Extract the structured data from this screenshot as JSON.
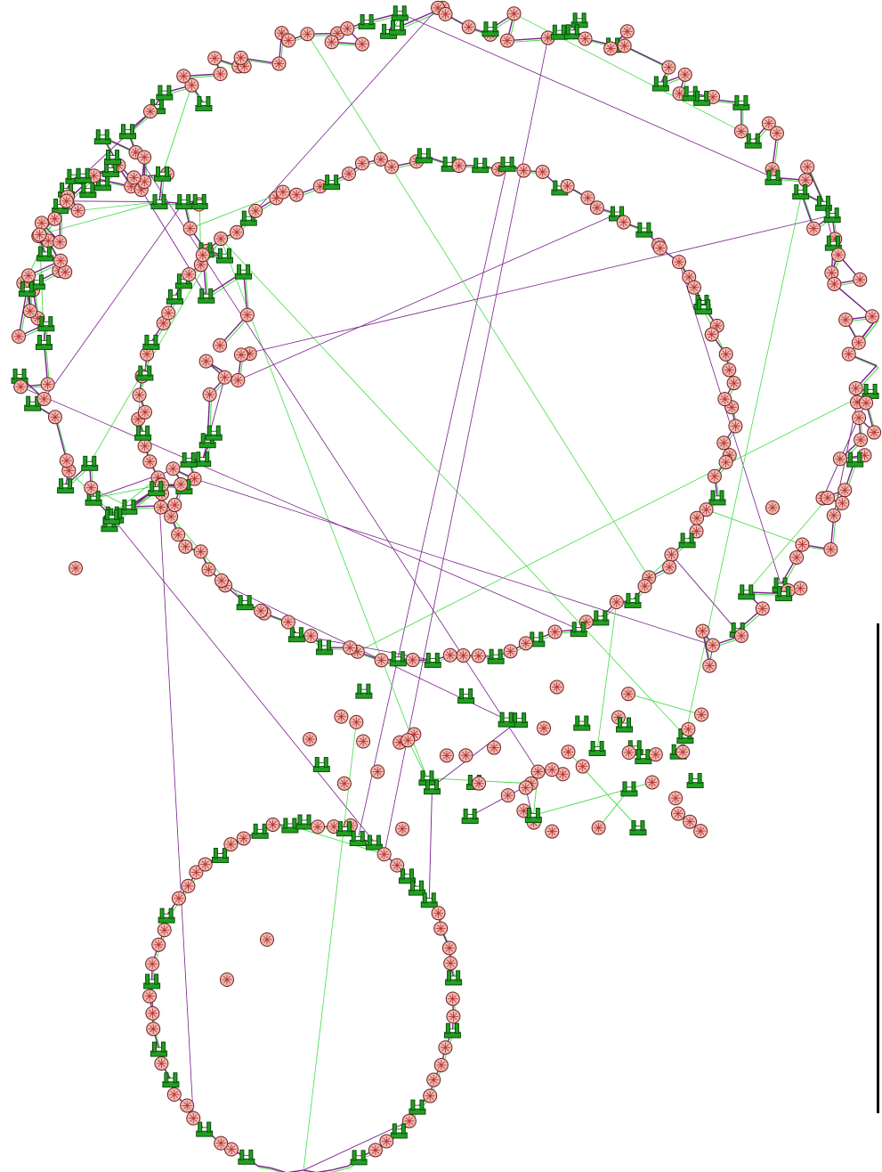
{
  "diagram": {
    "type": "network-graph",
    "edge_colors": {
      "wireless": "#44dd44",
      "wired": "#7a1f8c"
    },
    "node_kinds": {
      "router": {
        "icon": "router-icon",
        "fill": "#f2b8b0",
        "stroke": "#6b2020",
        "spoke": "#b03030"
      },
      "switch": {
        "icon": "switch-icon",
        "fill": "#21a021",
        "stroke": "#0b4d0b"
      }
    }
  }
}
